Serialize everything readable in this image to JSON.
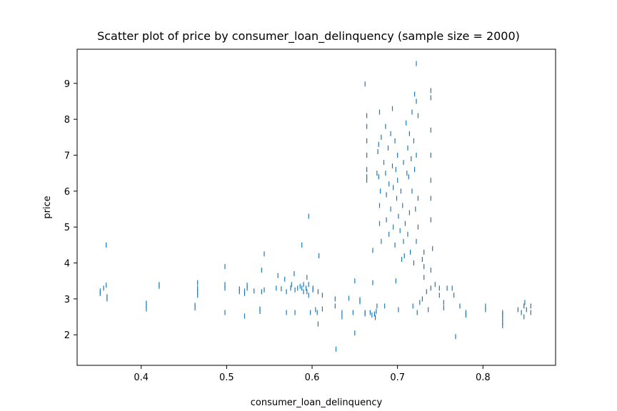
{
  "chart_data": {
    "type": "scatter",
    "title": "Scatter plot of price by consumer_loan_delinquency (sample size = 2000)",
    "xlabel": "consumer_loan_delinquency",
    "ylabel": "price",
    "xlim": [
      0.325,
      0.885
    ],
    "ylim": [
      1.15,
      9.95
    ],
    "xticks": [
      0.4,
      0.5,
      0.6,
      0.7,
      0.8
    ],
    "xtick_labels": [
      "0.4",
      "0.5",
      "0.6",
      "0.7",
      "0.8"
    ],
    "yticks": [
      2,
      3,
      4,
      5,
      6,
      7,
      8,
      9
    ],
    "ytick_labels": [
      "2",
      "3",
      "4",
      "5",
      "6",
      "7",
      "8",
      "9"
    ],
    "grid": false,
    "marker": "|",
    "color": "#1f77b4",
    "series": [
      {
        "points": [
          [
            0.352,
            3.15
          ],
          [
            0.352,
            3.22
          ],
          [
            0.356,
            3.3
          ],
          [
            0.359,
            3.38
          ],
          [
            0.36,
            3.0
          ],
          [
            0.36,
            3.06
          ],
          [
            0.359,
            4.5
          ],
          [
            0.406,
            2.72
          ],
          [
            0.406,
            2.8
          ],
          [
            0.406,
            2.88
          ],
          [
            0.421,
            3.35
          ],
          [
            0.421,
            3.4
          ],
          [
            0.463,
            2.75
          ],
          [
            0.463,
            2.82
          ],
          [
            0.466,
            3.1
          ],
          [
            0.466,
            3.2
          ],
          [
            0.466,
            3.3
          ],
          [
            0.466,
            3.45
          ],
          [
            0.498,
            3.3
          ],
          [
            0.498,
            3.4
          ],
          [
            0.498,
            2.62
          ],
          [
            0.498,
            3.9
          ],
          [
            0.515,
            3.2
          ],
          [
            0.515,
            3.28
          ],
          [
            0.521,
            3.15
          ],
          [
            0.521,
            3.22
          ],
          [
            0.521,
            2.52
          ],
          [
            0.524,
            3.3
          ],
          [
            0.524,
            3.38
          ],
          [
            0.532,
            3.22
          ],
          [
            0.539,
            2.65
          ],
          [
            0.539,
            2.72
          ],
          [
            0.541,
            3.2
          ],
          [
            0.541,
            3.8
          ],
          [
            0.544,
            3.25
          ],
          [
            0.544,
            4.25
          ],
          [
            0.558,
            3.3
          ],
          [
            0.56,
            3.65
          ],
          [
            0.564,
            3.28
          ],
          [
            0.568,
            3.55
          ],
          [
            0.57,
            3.2
          ],
          [
            0.57,
            2.62
          ],
          [
            0.575,
            3.3
          ],
          [
            0.576,
            3.4
          ],
          [
            0.579,
            3.7
          ],
          [
            0.58,
            3.25
          ],
          [
            0.58,
            2.62
          ],
          [
            0.583,
            3.3
          ],
          [
            0.586,
            3.35
          ],
          [
            0.588,
            3.3
          ],
          [
            0.588,
            4.5
          ],
          [
            0.59,
            3.2
          ],
          [
            0.59,
            3.4
          ],
          [
            0.593,
            3.3
          ],
          [
            0.594,
            3.2
          ],
          [
            0.594,
            3.6
          ],
          [
            0.596,
            3.1
          ],
          [
            0.596,
            3.4
          ],
          [
            0.596,
            5.3
          ],
          [
            0.598,
            2.62
          ],
          [
            0.601,
            3.25
          ],
          [
            0.601,
            3.3
          ],
          [
            0.604,
            2.7
          ],
          [
            0.606,
            2.62
          ],
          [
            0.607,
            2.3
          ],
          [
            0.607,
            3.2
          ],
          [
            0.608,
            4.2
          ],
          [
            0.612,
            3.1
          ],
          [
            0.612,
            2.72
          ],
          [
            0.627,
            3.0
          ],
          [
            0.627,
            2.8
          ],
          [
            0.628,
            1.6
          ],
          [
            0.635,
            2.5
          ],
          [
            0.635,
            2.62
          ],
          [
            0.643,
            3.02
          ],
          [
            0.648,
            2.62
          ],
          [
            0.65,
            3.5
          ],
          [
            0.65,
            2.05
          ],
          [
            0.656,
            2.92
          ],
          [
            0.656,
            2.98
          ],
          [
            0.662,
            2.62
          ],
          [
            0.662,
            2.58
          ],
          [
            0.662,
            8.98
          ],
          [
            0.664,
            8.1
          ],
          [
            0.664,
            7.8
          ],
          [
            0.664,
            7.4
          ],
          [
            0.664,
            7.0
          ],
          [
            0.664,
            6.6
          ],
          [
            0.664,
            6.4
          ],
          [
            0.664,
            6.3
          ],
          [
            0.668,
            2.62
          ],
          [
            0.67,
            2.55
          ],
          [
            0.671,
            3.45
          ],
          [
            0.671,
            4.35
          ],
          [
            0.673,
            2.58
          ],
          [
            0.674,
            2.48
          ],
          [
            0.675,
            2.65
          ],
          [
            0.676,
            2.8
          ],
          [
            0.676,
            6.5
          ],
          [
            0.677,
            7.1
          ],
          [
            0.678,
            7.3
          ],
          [
            0.678,
            6.4
          ],
          [
            0.679,
            8.2
          ],
          [
            0.679,
            5.6
          ],
          [
            0.679,
            5.1
          ],
          [
            0.68,
            6.0
          ],
          [
            0.681,
            7.5
          ],
          [
            0.681,
            4.6
          ],
          [
            0.684,
            6.8
          ],
          [
            0.685,
            2.8
          ],
          [
            0.686,
            7.8
          ],
          [
            0.686,
            6.5
          ],
          [
            0.687,
            5.9
          ],
          [
            0.687,
            5.2
          ],
          [
            0.689,
            7.2
          ],
          [
            0.69,
            6.2
          ],
          [
            0.69,
            4.8
          ],
          [
            0.692,
            7.6
          ],
          [
            0.692,
            5.5
          ],
          [
            0.694,
            8.3
          ],
          [
            0.694,
            6.7
          ],
          [
            0.695,
            6.1
          ],
          [
            0.695,
            5.0
          ],
          [
            0.697,
            7.4
          ],
          [
            0.697,
            4.5
          ],
          [
            0.698,
            6.6
          ],
          [
            0.698,
            3.5
          ],
          [
            0.699,
            5.8
          ],
          [
            0.7,
            7.0
          ],
          [
            0.7,
            6.3
          ],
          [
            0.701,
            5.3
          ],
          [
            0.701,
            2.7
          ],
          [
            0.703,
            4.9
          ],
          [
            0.704,
            6.0
          ],
          [
            0.705,
            4.1
          ],
          [
            0.706,
            5.6
          ],
          [
            0.707,
            6.8
          ],
          [
            0.707,
            4.6
          ],
          [
            0.708,
            4.2
          ],
          [
            0.709,
            5.1
          ],
          [
            0.71,
            7.9
          ],
          [
            0.711,
            6.5
          ],
          [
            0.712,
            7.2
          ],
          [
            0.712,
            4.8
          ],
          [
            0.713,
            6.4
          ],
          [
            0.714,
            7.6
          ],
          [
            0.714,
            5.4
          ],
          [
            0.715,
            4.3
          ],
          [
            0.716,
            6.9
          ],
          [
            0.717,
            8.2
          ],
          [
            0.717,
            6.0
          ],
          [
            0.718,
            2.8
          ],
          [
            0.719,
            7.4
          ],
          [
            0.719,
            4.0
          ],
          [
            0.72,
            8.7
          ],
          [
            0.72,
            6.6
          ],
          [
            0.721,
            5.5
          ],
          [
            0.722,
            9.55
          ],
          [
            0.722,
            8.5
          ],
          [
            0.722,
            7.0
          ],
          [
            0.722,
            4.6
          ],
          [
            0.723,
            2.62
          ],
          [
            0.724,
            8.1
          ],
          [
            0.724,
            5.8
          ],
          [
            0.724,
            5.0
          ],
          [
            0.726,
            2.9
          ],
          [
            0.729,
            4.1
          ],
          [
            0.729,
            3.0
          ],
          [
            0.731,
            3.6
          ],
          [
            0.731,
            3.9
          ],
          [
            0.731,
            4.3
          ],
          [
            0.734,
            3.2
          ],
          [
            0.736,
            2.7
          ],
          [
            0.739,
            8.8
          ],
          [
            0.739,
            8.6
          ],
          [
            0.739,
            7.7
          ],
          [
            0.739,
            7.0
          ],
          [
            0.739,
            6.3
          ],
          [
            0.739,
            5.8
          ],
          [
            0.739,
            5.2
          ],
          [
            0.739,
            3.8
          ],
          [
            0.739,
            3.3
          ],
          [
            0.741,
            4.4
          ],
          [
            0.744,
            3.4
          ],
          [
            0.749,
            3.3
          ],
          [
            0.749,
            3.1
          ],
          [
            0.754,
            2.9
          ],
          [
            0.754,
            2.75
          ],
          [
            0.758,
            3.3
          ],
          [
            0.764,
            3.3
          ],
          [
            0.766,
            3.1
          ],
          [
            0.768,
            1.95
          ],
          [
            0.773,
            2.8
          ],
          [
            0.78,
            2.62
          ],
          [
            0.78,
            2.55
          ],
          [
            0.803,
            2.7
          ],
          [
            0.803,
            2.8
          ],
          [
            0.823,
            2.25
          ],
          [
            0.823,
            2.35
          ],
          [
            0.823,
            2.45
          ],
          [
            0.823,
            2.55
          ],
          [
            0.823,
            2.62
          ],
          [
            0.841,
            2.7
          ],
          [
            0.845,
            2.62
          ],
          [
            0.848,
            2.5
          ],
          [
            0.848,
            2.8
          ],
          [
            0.849,
            2.9
          ],
          [
            0.851,
            2.7
          ],
          [
            0.856,
            2.62
          ],
          [
            0.856,
            2.8
          ]
        ]
      }
    ]
  }
}
